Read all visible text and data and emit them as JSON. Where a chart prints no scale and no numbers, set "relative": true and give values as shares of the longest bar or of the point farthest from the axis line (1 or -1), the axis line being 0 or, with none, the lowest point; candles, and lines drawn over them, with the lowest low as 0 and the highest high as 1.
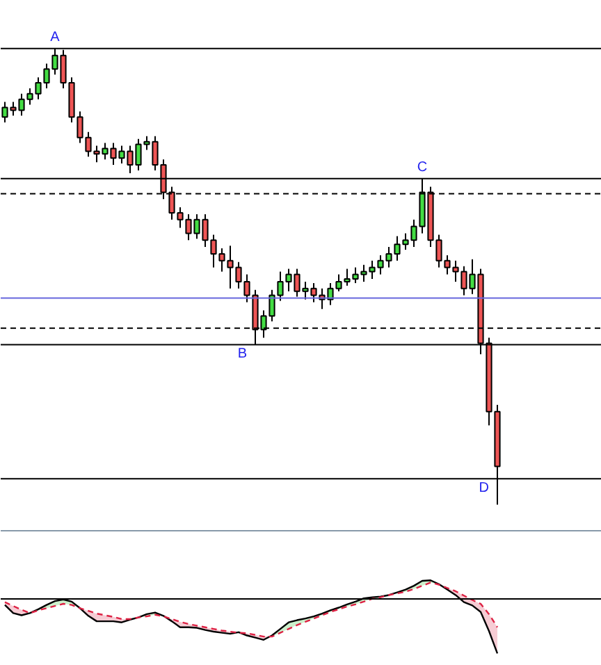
{
  "chart_data": [
    {
      "type": "candlestick",
      "relative": true,
      "categories": [
        null,
        null,
        null,
        null,
        null,
        null,
        null,
        null,
        null,
        null,
        null,
        null,
        null,
        null,
        null,
        null,
        null,
        null,
        null,
        null,
        null,
        null,
        null,
        null,
        null,
        null,
        null,
        null,
        null,
        null,
        null,
        null,
        null,
        null,
        null,
        null,
        null,
        null,
        null,
        null,
        null,
        null,
        null,
        null,
        null,
        null,
        null,
        null,
        null,
        null,
        null,
        null,
        null,
        null,
        null,
        null,
        null,
        null,
        null,
        null
      ],
      "ohlc": [
        [
          0.85,
          0.883,
          0.838,
          0.871
        ],
        [
          0.871,
          0.883,
          0.853,
          0.865
        ],
        [
          0.865,
          0.901,
          0.853,
          0.889
        ],
        [
          0.889,
          0.913,
          0.877,
          0.901
        ],
        [
          0.901,
          0.937,
          0.889,
          0.925
        ],
        [
          0.925,
          0.967,
          0.913,
          0.955
        ],
        [
          0.955,
          1.0,
          0.943,
          0.985
        ],
        [
          0.985,
          0.997,
          0.913,
          0.925
        ],
        [
          0.925,
          0.937,
          0.838,
          0.85
        ],
        [
          0.85,
          0.862,
          0.793,
          0.805
        ],
        [
          0.805,
          0.817,
          0.763,
          0.775
        ],
        [
          0.775,
          0.787,
          0.751,
          0.769
        ],
        [
          0.769,
          0.793,
          0.757,
          0.781
        ],
        [
          0.781,
          0.793,
          0.745,
          0.76
        ],
        [
          0.76,
          0.787,
          0.748,
          0.775
        ],
        [
          0.775,
          0.787,
          0.727,
          0.745
        ],
        [
          0.745,
          0.802,
          0.733,
          0.79
        ],
        [
          0.79,
          0.808,
          0.778,
          0.796
        ],
        [
          0.796,
          0.808,
          0.733,
          0.745
        ],
        [
          0.745,
          0.757,
          0.67,
          0.685
        ],
        [
          0.685,
          0.697,
          0.625,
          0.64
        ],
        [
          0.64,
          0.652,
          0.607,
          0.625
        ],
        [
          0.625,
          0.637,
          0.58,
          0.595
        ],
        [
          0.595,
          0.637,
          0.583,
          0.625
        ],
        [
          0.625,
          0.637,
          0.565,
          0.58
        ],
        [
          0.58,
          0.592,
          0.52,
          0.55
        ],
        [
          0.55,
          0.562,
          0.511,
          0.535
        ],
        [
          0.535,
          0.568,
          0.474,
          0.52
        ],
        [
          0.52,
          0.532,
          0.474,
          0.489
        ],
        [
          0.489,
          0.505,
          0.444,
          0.459
        ],
        [
          0.459,
          0.471,
          0.351,
          0.384
        ],
        [
          0.384,
          0.426,
          0.366,
          0.414
        ],
        [
          0.414,
          0.471,
          0.402,
          0.459
        ],
        [
          0.459,
          0.511,
          0.447,
          0.489
        ],
        [
          0.489,
          0.517,
          0.468,
          0.505
        ],
        [
          0.505,
          0.517,
          0.456,
          0.468
        ],
        [
          0.468,
          0.489,
          0.45,
          0.474
        ],
        [
          0.474,
          0.486,
          0.444,
          0.459
        ],
        [
          0.459,
          0.474,
          0.429,
          0.45
        ],
        [
          0.45,
          0.486,
          0.438,
          0.474
        ],
        [
          0.474,
          0.505,
          0.468,
          0.489
        ],
        [
          0.489,
          0.517,
          0.48,
          0.495
        ],
        [
          0.495,
          0.52,
          0.486,
          0.505
        ],
        [
          0.505,
          0.526,
          0.489,
          0.511
        ],
        [
          0.511,
          0.535,
          0.495,
          0.52
        ],
        [
          0.52,
          0.547,
          0.505,
          0.535
        ],
        [
          0.535,
          0.565,
          0.52,
          0.55
        ],
        [
          0.55,
          0.589,
          0.535,
          0.571
        ],
        [
          0.571,
          0.595,
          0.559,
          0.58
        ],
        [
          0.58,
          0.625,
          0.565,
          0.61
        ],
        [
          0.61,
          0.715,
          0.595,
          0.685
        ],
        [
          0.685,
          0.697,
          0.565,
          0.58
        ],
        [
          0.58,
          0.592,
          0.52,
          0.535
        ],
        [
          0.535,
          0.547,
          0.505,
          0.52
        ],
        [
          0.52,
          0.535,
          0.489,
          0.511
        ],
        [
          0.511,
          0.523,
          0.459,
          0.474
        ],
        [
          0.474,
          0.538,
          0.462,
          0.505
        ],
        [
          0.505,
          0.517,
          0.33,
          0.354
        ],
        [
          0.354,
          0.366,
          0.174,
          0.204
        ],
        [
          0.204,
          0.219,
          0.0,
          0.084
        ]
      ],
      "ref_lines": [
        {
          "axis": "y",
          "value": 1.0,
          "color": "#000000",
          "line_style": "solid"
        },
        {
          "axis": "y",
          "value": 0.682,
          "color": "#000000",
          "line_style": "dashed"
        },
        {
          "axis": "y",
          "value": 0.351,
          "color": "#000000",
          "line_style": "solid"
        },
        {
          "axis": "y",
          "value": 0.715,
          "color": "#000000",
          "line_style": "solid"
        },
        {
          "axis": "y",
          "value": 0.387,
          "color": "#000000",
          "line_style": "dashed"
        },
        {
          "axis": "y",
          "value": 0.057,
          "color": "#000000",
          "line_style": "solid"
        },
        {
          "axis": "y",
          "value": 0.453,
          "color": "#6666dd",
          "line_style": "solid"
        }
      ],
      "annotations": [
        {
          "text": "A",
          "y": 1.0
        },
        {
          "text": "B",
          "y": 0.351
        },
        {
          "text": "C",
          "y": 0.715
        },
        {
          "text": "D",
          "y": 0.057
        }
      ]
    },
    {
      "type": "line",
      "relative": true,
      "categories": [
        null,
        null,
        null,
        null,
        null,
        null,
        null,
        null,
        null,
        null,
        null,
        null,
        null,
        null,
        null,
        null,
        null,
        null,
        null,
        null,
        null,
        null,
        null,
        null,
        null,
        null,
        null,
        null,
        null,
        null,
        null,
        null,
        null,
        null,
        null,
        null,
        null,
        null,
        null,
        null,
        null,
        null,
        null,
        null,
        null,
        null,
        null,
        null,
        null,
        null,
        null,
        null,
        null,
        null,
        null,
        null,
        null,
        null,
        null,
        null
      ],
      "series": [
        {
          "color": "#000000",
          "line_style": "solid",
          "values": [
            -0.11,
            -0.26,
            -0.3,
            -0.26,
            -0.19,
            -0.11,
            -0.04,
            -0.01,
            -0.05,
            -0.17,
            -0.31,
            -0.41,
            -0.41,
            -0.41,
            -0.43,
            -0.38,
            -0.34,
            -0.28,
            -0.25,
            -0.31,
            -0.41,
            -0.52,
            -0.52,
            -0.53,
            -0.57,
            -0.6,
            -0.62,
            -0.64,
            -0.61,
            -0.67,
            -0.71,
            -0.75,
            -0.67,
            -0.55,
            -0.43,
            -0.39,
            -0.36,
            -0.32,
            -0.27,
            -0.21,
            -0.16,
            -0.1,
            -0.05,
            0.01,
            0.03,
            0.04,
            0.07,
            0.12,
            0.17,
            0.24,
            0.33,
            0.34,
            0.27,
            0.17,
            0.07,
            -0.06,
            -0.12,
            -0.24,
            -0.59,
            -1.0
          ],
          "upper": [
            null,
            null,
            null,
            -0.26,
            -0.19,
            -0.11,
            -0.04,
            -0.01,
            -0.05,
            -0.17,
            null,
            null,
            null,
            null,
            null,
            null,
            -0.34,
            -0.28,
            -0.25,
            -0.31,
            null,
            null,
            null,
            null,
            null,
            null,
            null,
            null,
            null,
            null,
            null,
            null,
            -0.67,
            -0.55,
            -0.43,
            -0.39,
            -0.36,
            -0.32,
            -0.27,
            -0.21,
            -0.16,
            -0.1,
            -0.05,
            0.01,
            0.03,
            0.04,
            0.07,
            0.12,
            0.17,
            0.24,
            0.33,
            0.34,
            0.27,
            null,
            null,
            null,
            null,
            null,
            null,
            null
          ],
          "lower": [
            null,
            null,
            null,
            -0.26,
            -0.21,
            -0.17,
            -0.13,
            -0.09,
            -0.11,
            -0.17,
            null,
            null,
            null,
            null,
            null,
            null,
            -0.34,
            -0.32,
            -0.29,
            -0.32,
            null,
            null,
            null,
            null,
            null,
            null,
            null,
            null,
            null,
            null,
            null,
            null,
            -0.69,
            -0.62,
            -0.55,
            -0.48,
            -0.42,
            -0.36,
            -0.3,
            -0.24,
            -0.19,
            -0.14,
            -0.1,
            -0.05,
            0.0,
            0.03,
            0.07,
            0.1,
            0.13,
            0.18,
            0.24,
            0.3,
            0.26,
            null,
            null,
            null,
            null,
            null,
            null,
            null
          ]
        },
        {
          "color": "#dd2244",
          "line_style": "dashed",
          "values": [
            -0.06,
            -0.13,
            -0.2,
            -0.26,
            -0.21,
            -0.17,
            -0.13,
            -0.09,
            -0.11,
            -0.17,
            -0.22,
            -0.27,
            -0.3,
            -0.33,
            -0.37,
            -0.37,
            -0.34,
            -0.32,
            -0.29,
            -0.32,
            -0.37,
            -0.42,
            -0.46,
            -0.49,
            -0.52,
            -0.55,
            -0.58,
            -0.6,
            -0.62,
            -0.63,
            -0.66,
            -0.69,
            -0.69,
            -0.62,
            -0.55,
            -0.48,
            -0.42,
            -0.36,
            -0.3,
            -0.24,
            -0.19,
            -0.14,
            -0.1,
            -0.05,
            0.0,
            0.03,
            0.07,
            0.1,
            0.13,
            0.18,
            0.24,
            0.3,
            0.26,
            0.2,
            0.14,
            0.06,
            -0.02,
            -0.09,
            -0.28,
            -0.52
          ],
          "upper": [
            -0.06,
            -0.13,
            -0.2,
            -0.26,
            null,
            null,
            null,
            null,
            null,
            -0.17,
            -0.22,
            -0.27,
            -0.3,
            -0.33,
            -0.37,
            -0.37,
            -0.34,
            null,
            null,
            -0.31,
            -0.37,
            -0.42,
            -0.46,
            -0.49,
            -0.52,
            -0.55,
            -0.58,
            -0.6,
            -0.61,
            -0.63,
            -0.66,
            -0.69,
            -0.67,
            null,
            null,
            null,
            null,
            null,
            null,
            null,
            null,
            null,
            null,
            null,
            null,
            null,
            null,
            null,
            null,
            null,
            null,
            null,
            0.27,
            0.2,
            0.14,
            0.06,
            -0.02,
            -0.09,
            -0.28,
            -0.52
          ],
          "lower": [
            -0.11,
            -0.26,
            -0.3,
            -0.26,
            null,
            null,
            null,
            null,
            null,
            -0.17,
            -0.31,
            -0.41,
            -0.41,
            -0.41,
            -0.43,
            -0.38,
            -0.34,
            null,
            null,
            -0.32,
            -0.41,
            -0.52,
            -0.52,
            -0.53,
            -0.57,
            -0.6,
            -0.62,
            -0.64,
            -0.62,
            -0.67,
            -0.71,
            -0.75,
            -0.69,
            null,
            null,
            null,
            null,
            null,
            null,
            null,
            null,
            null,
            null,
            null,
            null,
            null,
            null,
            null,
            null,
            null,
            null,
            null,
            0.26,
            0.17,
            0.07,
            -0.06,
            -0.12,
            -0.24,
            -0.59,
            -1.0
          ]
        }
      ],
      "ref_lines": [
        {
          "axis": "y",
          "value": 0,
          "color": "#000000"
        }
      ]
    }
  ]
}
